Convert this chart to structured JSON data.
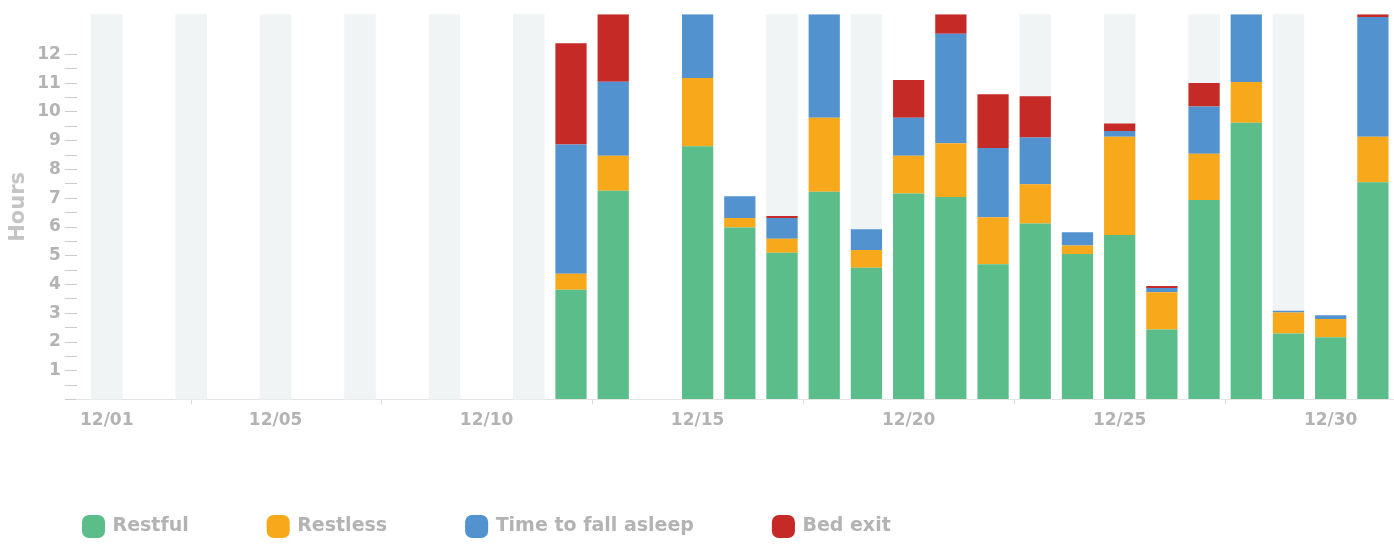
{
  "chart_data": {
    "type": "bar",
    "stacked": true,
    "ylabel": "Hours",
    "x": [
      "--12-12",
      "--12-13",
      "--12-15",
      "--12-16",
      "--12-17",
      "--12-18",
      "--12-19",
      "--12-20",
      "--12-21",
      "--12-22",
      "--12-23",
      "--12-24",
      "--12-25",
      "--12-26",
      "--12-27",
      "--12-28",
      "--12-29",
      "--12-30",
      "--12-31"
    ],
    "xlim": [
      "--11-30T07:00",
      "--12-31T12:00"
    ],
    "xticks": [
      {
        "value": "--12-01",
        "label": "12/01"
      },
      {
        "value": "--12-05",
        "label": "12/05"
      },
      {
        "value": "--12-10",
        "label": "12/10"
      },
      {
        "value": "--12-15",
        "label": "12/15"
      },
      {
        "value": "--12-20",
        "label": "12/20"
      },
      {
        "value": "--12-25",
        "label": "12/25"
      },
      {
        "value": "--12-30",
        "label": "12/30"
      }
    ],
    "ylim": [
      0,
      13.4
    ],
    "yticks": [
      {
        "value": 0,
        "label": null
      },
      {
        "value": 0.5,
        "label": null
      },
      1,
      {
        "value": 1.5,
        "label": null
      },
      2,
      {
        "value": 2.5,
        "label": null
      },
      3,
      {
        "value": 3.5,
        "label": null
      },
      4,
      {
        "value": 4.5,
        "label": null
      },
      5,
      {
        "value": 5.5,
        "label": null
      },
      6,
      {
        "value": 6.5,
        "label": null
      },
      7,
      {
        "value": 7.5,
        "label": null
      },
      8,
      {
        "value": 8.5,
        "label": null
      },
      9,
      {
        "value": 9.5,
        "label": null
      },
      10,
      {
        "value": 10.5,
        "label": null
      },
      11,
      {
        "value": 11.5,
        "label": null
      },
      12
    ],
    "grid": false,
    "legend": "bottom left",
    "series": [
      {
        "name": "Restful",
        "color": "#5bbd8a",
        "values": [
          3.82,
          7.26,
          8.81,
          5.98,
          5.11,
          7.23,
          4.58,
          7.17,
          7.04,
          4.71,
          6.12,
          5.06,
          5.72,
          2.44,
          6.94,
          9.63,
          2.3,
          2.17,
          7.56
        ]
      },
      {
        "name": "Restless",
        "color": "#f8a81b",
        "values": [
          0.56,
          1.22,
          2.37,
          0.33,
          0.48,
          2.57,
          0.62,
          1.31,
          1.87,
          1.63,
          1.37,
          0.3,
          3.42,
          1.29,
          1.61,
          1.41,
          0.73,
          0.63,
          1.58
        ]
      },
      {
        "name": "Time to fall asleep",
        "color": "#5192cf",
        "values": [
          4.49,
          2.57,
          2.22,
          0.76,
          0.72,
          3.6,
          0.72,
          1.32,
          3.81,
          2.41,
          1.62,
          0.46,
          0.2,
          0.15,
          1.64,
          2.36,
          0.06,
          0.13,
          4.16
        ]
      },
      {
        "name": "Bed exit",
        "color": "#c52a27",
        "values": [
          3.52,
          2.35,
          null,
          null,
          0.07,
          null,
          null,
          1.31,
          0.68,
          1.87,
          1.44,
          null,
          0.26,
          0.07,
          0.82,
          null,
          null,
          null,
          0.1
        ]
      }
    ],
    "bands": [
      {
        "axis": "x",
        "from": "--11-30T15:00",
        "to": "--12-01T09:00",
        "color": "#f1f4f5"
      },
      {
        "axis": "x",
        "from": "--12-02T15:00",
        "to": "--12-03T09:00",
        "color": "#f1f4f5"
      },
      {
        "axis": "x",
        "from": "--12-04T15:00",
        "to": "--12-05T09:00",
        "color": "#f1f4f5"
      },
      {
        "axis": "x",
        "from": "--12-06T15:00",
        "to": "--12-07T09:00",
        "color": "#f1f4f5"
      },
      {
        "axis": "x",
        "from": "--12-08T15:00",
        "to": "--12-09T09:00",
        "color": "#f1f4f5"
      },
      {
        "axis": "x",
        "from": "--12-10T15:00",
        "to": "--12-11T09:00",
        "color": "#f1f4f5"
      },
      {
        "axis": "x",
        "from": "--12-16T15:00",
        "to": "--12-17T09:00",
        "color": "#f1f4f5"
      },
      {
        "axis": "x",
        "from": "--12-18T15:00",
        "to": "--12-19T09:00",
        "color": "#f1f4f5"
      },
      {
        "axis": "x",
        "from": "--12-22T15:00",
        "to": "--12-23T09:00",
        "color": "#f1f4f5"
      },
      {
        "axis": "x",
        "from": "--12-24T15:00",
        "to": "--12-25T09:00",
        "color": "#f1f4f5"
      },
      {
        "axis": "x",
        "from": "--12-26T15:00",
        "to": "--12-27T09:00",
        "color": "#f1f4f5"
      },
      {
        "axis": "x",
        "from": "--12-28T15:00",
        "to": "--12-29T09:00",
        "color": "#f1f4f5"
      }
    ]
  }
}
